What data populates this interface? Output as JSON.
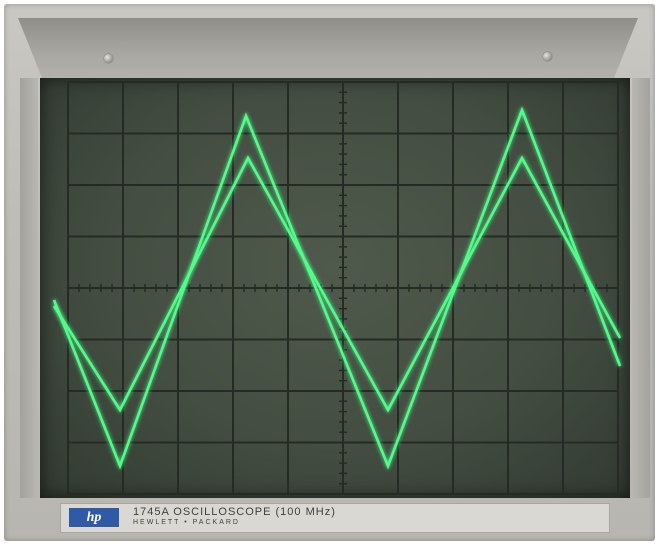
{
  "device": {
    "logo_text": "hp",
    "model": "1745A OSCILLOSCOPE (100 MHz)",
    "manufacturer": "HEWLETT • PACKARD"
  },
  "colors": {
    "trace": "#4dff8a",
    "grid": "#252b24",
    "screen": "#434d41",
    "logo": "#2f5aa6"
  },
  "icons": [
    "hp-logo-icon",
    "screw-icon"
  ]
}
